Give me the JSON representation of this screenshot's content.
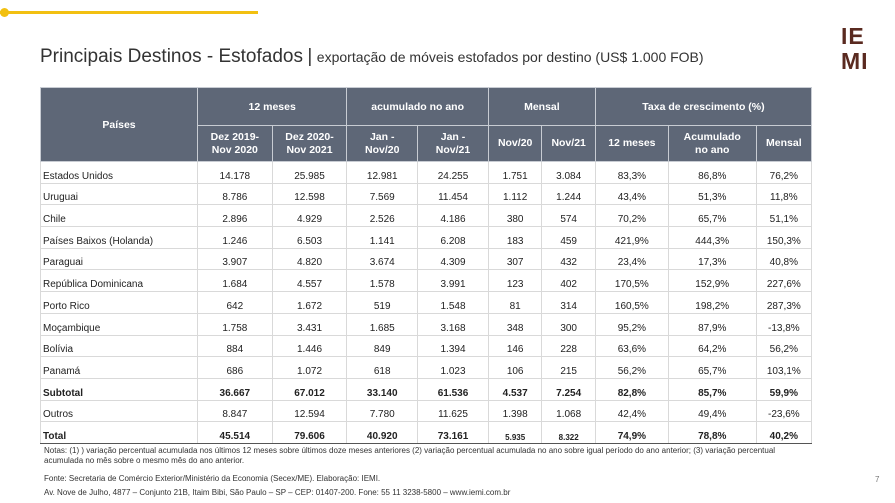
{
  "logo": {
    "line1": "IE",
    "line2": "MI"
  },
  "title": {
    "main": "Principais Destinos - Estofados",
    "separator": "|",
    "subtitle": "exportação de móveis estofados por destino (US$ 1.000 FOB)"
  },
  "table": {
    "header_groups": {
      "countries": "Países",
      "months12": "12 meses",
      "accumulated": "acumulado no ano",
      "monthly": "Mensal",
      "growth": "Taxa de crescimento (%)"
    },
    "subheaders": [
      "Dez 2019-\nNov 2020",
      "Dez 2020-\nNov 2021",
      "Jan -\nNov/20",
      "Jan -\nNov/21",
      "Nov/20",
      "Nov/21",
      "12 meses",
      "Acumulado\nno ano",
      "Mensal"
    ],
    "rows": [
      {
        "country": "Estados Unidos",
        "values": [
          "14.178",
          "25.985",
          "12.981",
          "24.255",
          "1.751",
          "3.084",
          "83,3%",
          "86,8%",
          "76,2%"
        ]
      },
      {
        "country": "Uruguai",
        "values": [
          "8.786",
          "12.598",
          "7.569",
          "11.454",
          "1.112",
          "1.244",
          "43,4%",
          "51,3%",
          "11,8%"
        ]
      },
      {
        "country": "Chile",
        "values": [
          "2.896",
          "4.929",
          "2.526",
          "4.186",
          "380",
          "574",
          "70,2%",
          "65,7%",
          "51,1%"
        ]
      },
      {
        "country": "Países Baixos (Holanda)",
        "values": [
          "1.246",
          "6.503",
          "1.141",
          "6.208",
          "183",
          "459",
          "421,9%",
          "444,3%",
          "150,3%"
        ]
      },
      {
        "country": "Paraguai",
        "values": [
          "3.907",
          "4.820",
          "3.674",
          "4.309",
          "307",
          "432",
          "23,4%",
          "17,3%",
          "40,8%"
        ]
      },
      {
        "country": "República Dominicana",
        "values": [
          "1.684",
          "4.557",
          "1.578",
          "3.991",
          "123",
          "402",
          "170,5%",
          "152,9%",
          "227,6%"
        ]
      },
      {
        "country": "Porto Rico",
        "values": [
          "642",
          "1.672",
          "519",
          "1.548",
          "81",
          "314",
          "160,5%",
          "198,2%",
          "287,3%"
        ]
      },
      {
        "country": "Moçambique",
        "values": [
          "1.758",
          "3.431",
          "1.685",
          "3.168",
          "348",
          "300",
          "95,2%",
          "87,9%",
          "-13,8%"
        ]
      },
      {
        "country": "Bolívia",
        "values": [
          "884",
          "1.446",
          "849",
          "1.394",
          "146",
          "228",
          "63,6%",
          "64,2%",
          "56,2%"
        ]
      },
      {
        "country": "Panamá",
        "values": [
          "686",
          "1.072",
          "618",
          "1.023",
          "106",
          "215",
          "56,2%",
          "65,7%",
          "103,1%"
        ]
      }
    ],
    "subtotal": {
      "country": "Subtotal",
      "values": [
        "36.667",
        "67.012",
        "33.140",
        "61.536",
        "4.537",
        "7.254",
        "82,8%",
        "85,7%",
        "59,9%"
      ]
    },
    "others": {
      "country": "Outros",
      "values": [
        "8.847",
        "12.594",
        "7.780",
        "11.625",
        "1.398",
        "1.068",
        "42,4%",
        "49,4%",
        "-23,6%"
      ]
    },
    "total": {
      "country": "Total",
      "values": [
        "45.514",
        "79.606",
        "40.920",
        "73.161",
        "5.935",
        "8.322",
        "74,9%",
        "78,8%",
        "40,2%"
      ]
    }
  },
  "notes": "Notas: (1) ) variação percentual acumulada nos últimos 12 meses sobre últimos doze meses anteriores (2) variação percentual acumulada no ano sobre igual período do ano anterior; (3) variação percentual acumulada no mês sobre o mesmo mês do ano anterior.",
  "source": "Fonte: Secretaria de Comércio Exterior/Ministério da Economia (Secex/ME). Elaboração: IEMI.",
  "address": "Av. Nove de Julho, 4877 – Conjunto 21B, Itaim Bibi, São Paulo – SP – CEP: 01407-200. Fone: 55 11 3238-5800 – www.iemi.com.br",
  "page_number": "7",
  "colors": {
    "accent": "#f2c011",
    "header_bg": "#5e6777",
    "logo": "#5a2a20"
  }
}
